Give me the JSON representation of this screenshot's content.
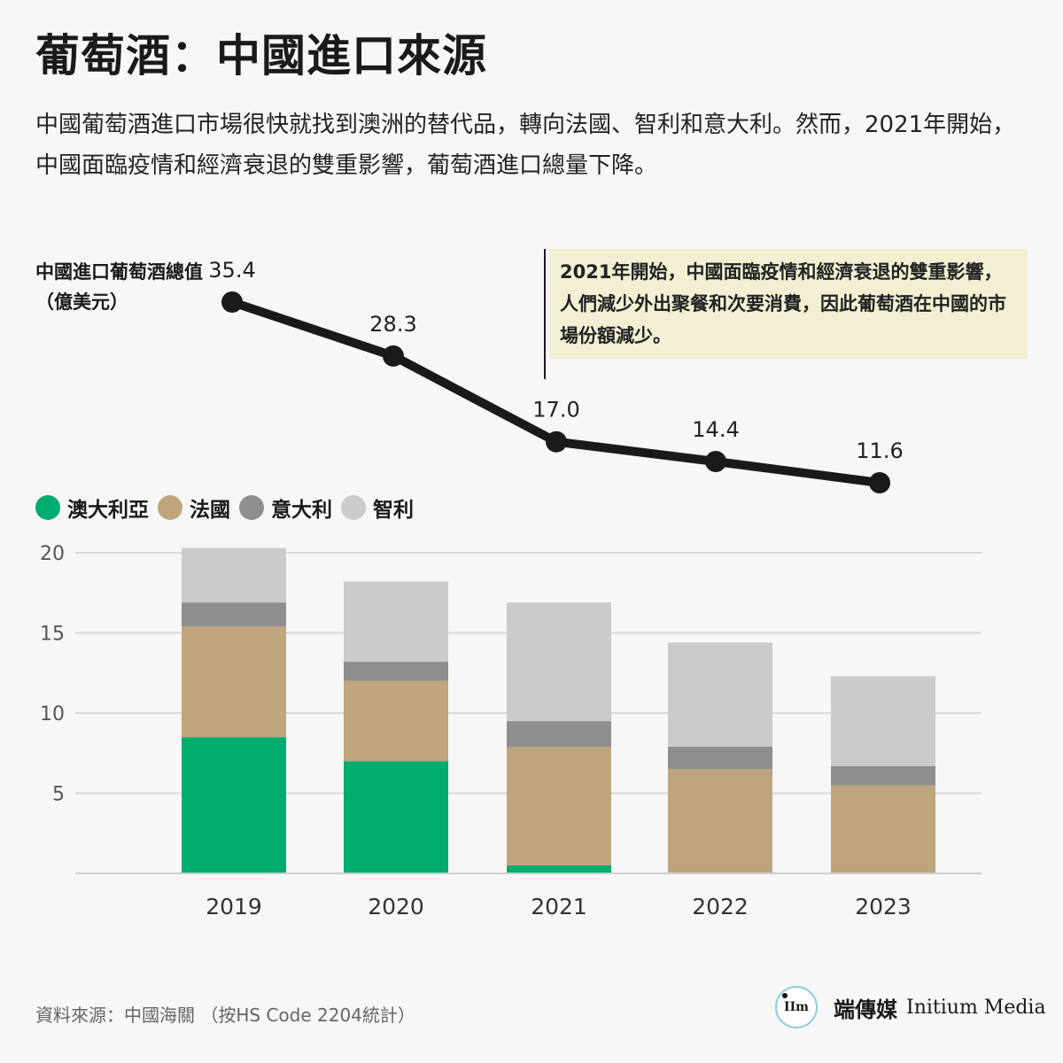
{
  "title": "葡萄酒：中國進口來源",
  "subtitle": "中國葡萄酒進口市場很快就找到澳洲的替代品，轉向法國、智利和意大利。然而，2021年開始，中國面臨疫情和經濟衰退的雙重影響，葡萄酒進口總量下降。",
  "line_label": "中國進口葡萄酒總值（億美元）",
  "annotation": "2021年開始，中國面臨疫情和經濟衰退的雙重影響，人們減少外出聚餐和次要消費，因此葡萄酒在中國的市場份額減少。",
  "legend": [
    {
      "label": "澳大利亞",
      "color": "#00ad6e"
    },
    {
      "label": "法國",
      "color": "#bea57d"
    },
    {
      "label": "意大利",
      "color": "#8e8e8e"
    },
    {
      "label": "智利",
      "color": "#cbcbcb"
    }
  ],
  "source": "資料來源：中國海關 （按HS Code 2204統計）",
  "brand": {
    "cn": "端傳媒",
    "en": "Initium Media",
    "logo_text": "IIm"
  },
  "chart_data": [
    {
      "type": "line",
      "title": "中國進口葡萄酒總值（億美元）",
      "x": [
        "2019",
        "2020",
        "2021",
        "2022",
        "2023"
      ],
      "series": [
        {
          "values": [
            35.4,
            28.3,
            17.0,
            14.4,
            11.6
          ]
        }
      ],
      "labels": [
        "35.4",
        "28.3",
        "17.0",
        "14.4",
        "11.6"
      ],
      "color": "#1a1a1a"
    },
    {
      "type": "bar",
      "stacked": true,
      "categories": [
        "2019",
        "2020",
        "2021",
        "2022",
        "2023"
      ],
      "series": [
        {
          "name": "澳大利亞",
          "color": "#00ad6e",
          "values": [
            8.5,
            7.0,
            0.5,
            0.0,
            0.0
          ]
        },
        {
          "name": "法國",
          "color": "#bea57d",
          "values": [
            6.9,
            5.0,
            7.4,
            6.5,
            5.5
          ]
        },
        {
          "name": "意大利",
          "color": "#8e8e8e",
          "values": [
            1.5,
            1.2,
            1.6,
            1.4,
            1.2
          ]
        },
        {
          "name": "智利",
          "color": "#cbcbcb",
          "values": [
            3.4,
            5.0,
            7.4,
            6.5,
            5.6
          ]
        }
      ],
      "yticks": [
        5,
        10,
        15,
        20
      ],
      "ylim": [
        0,
        20
      ],
      "grid": true
    }
  ]
}
